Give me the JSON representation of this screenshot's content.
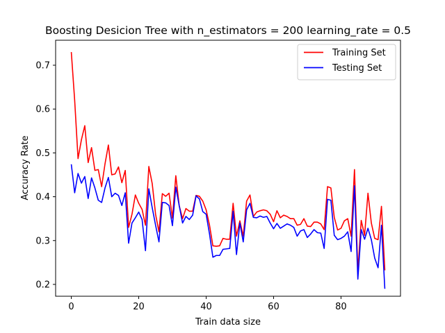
{
  "chart_data": {
    "type": "line",
    "title": "Boosting Desicion Tree with n_estimators = 200 learning_rate = 0.5",
    "xlabel": "Train data size",
    "ylabel": "Accuracy Rate",
    "xlim": [
      -4.65,
      97.65
    ],
    "ylim": [
      0.173,
      0.757
    ],
    "xticks": [
      0,
      20,
      40,
      60,
      80
    ],
    "xtick_labels": [
      "0",
      "20",
      "40",
      "60",
      "80"
    ],
    "yticks": [
      0.2,
      0.3,
      0.4,
      0.5,
      0.6,
      0.7
    ],
    "ytick_labels": [
      "0.2",
      "0.3",
      "0.4",
      "0.5",
      "0.6",
      "0.7"
    ],
    "legend_position": "top-right",
    "x": [
      0,
      1,
      2,
      3,
      4,
      5,
      6,
      7,
      8,
      9,
      10,
      11,
      12,
      13,
      14,
      15,
      16,
      17,
      18,
      19,
      20,
      21,
      22,
      23,
      24,
      25,
      26,
      27,
      28,
      29,
      30,
      31,
      32,
      33,
      34,
      35,
      36,
      37,
      38,
      39,
      40,
      41,
      42,
      43,
      44,
      45,
      46,
      47,
      48,
      49,
      50,
      51,
      52,
      53,
      54,
      55,
      56,
      57,
      58,
      59,
      60,
      61,
      62,
      63,
      64,
      65,
      66,
      67,
      68,
      69,
      70,
      71,
      72,
      73,
      74,
      75,
      76,
      77,
      78,
      79,
      80,
      81,
      82,
      83,
      84,
      85,
      86,
      87,
      88,
      89,
      90,
      91,
      92,
      93
    ],
    "series": [
      {
        "name": "Training Set",
        "color": "#ff0000",
        "values": [
          0.73,
          0.62,
          0.487,
          0.53,
          0.562,
          0.478,
          0.512,
          0.46,
          0.462,
          0.423,
          0.475,
          0.518,
          0.45,
          0.452,
          0.468,
          0.432,
          0.46,
          0.33,
          0.36,
          0.404,
          0.385,
          0.371,
          0.335,
          0.469,
          0.43,
          0.36,
          0.32,
          0.407,
          0.401,
          0.408,
          0.351,
          0.448,
          0.38,
          0.35,
          0.373,
          0.367,
          0.367,
          0.403,
          0.401,
          0.39,
          0.37,
          0.335,
          0.288,
          0.287,
          0.288,
          0.305,
          0.303,
          0.303,
          0.385,
          0.31,
          0.345,
          0.31,
          0.39,
          0.404,
          0.355,
          0.365,
          0.368,
          0.37,
          0.368,
          0.36,
          0.343,
          0.368,
          0.352,
          0.358,
          0.355,
          0.35,
          0.35,
          0.335,
          0.337,
          0.35,
          0.333,
          0.332,
          0.342,
          0.342,
          0.338,
          0.325,
          0.423,
          0.42,
          0.353,
          0.324,
          0.328,
          0.345,
          0.35,
          0.31,
          0.462,
          0.23,
          0.346,
          0.312,
          0.408,
          0.34,
          0.305,
          0.302,
          0.378,
          0.232
        ]
      },
      {
        "name": "Testing Set",
        "color": "#0000ff",
        "values": [
          0.474,
          0.409,
          0.453,
          0.431,
          0.446,
          0.396,
          0.443,
          0.42,
          0.392,
          0.387,
          0.42,
          0.444,
          0.4,
          0.408,
          0.403,
          0.38,
          0.409,
          0.294,
          0.34,
          0.352,
          0.365,
          0.348,
          0.277,
          0.418,
          0.375,
          0.335,
          0.297,
          0.387,
          0.386,
          0.38,
          0.334,
          0.422,
          0.38,
          0.34,
          0.355,
          0.348,
          0.358,
          0.402,
          0.395,
          0.366,
          0.36,
          0.315,
          0.262,
          0.266,
          0.266,
          0.28,
          0.281,
          0.282,
          0.367,
          0.268,
          0.34,
          0.297,
          0.37,
          0.385,
          0.353,
          0.352,
          0.356,
          0.353,
          0.355,
          0.34,
          0.327,
          0.339,
          0.328,
          0.333,
          0.338,
          0.335,
          0.33,
          0.31,
          0.322,
          0.325,
          0.307,
          0.315,
          0.325,
          0.318,
          0.317,
          0.282,
          0.394,
          0.392,
          0.312,
          0.302,
          0.305,
          0.31,
          0.32,
          0.275,
          0.425,
          0.212,
          0.325,
          0.303,
          0.328,
          0.302,
          0.26,
          0.238,
          0.335,
          0.19
        ]
      }
    ]
  }
}
